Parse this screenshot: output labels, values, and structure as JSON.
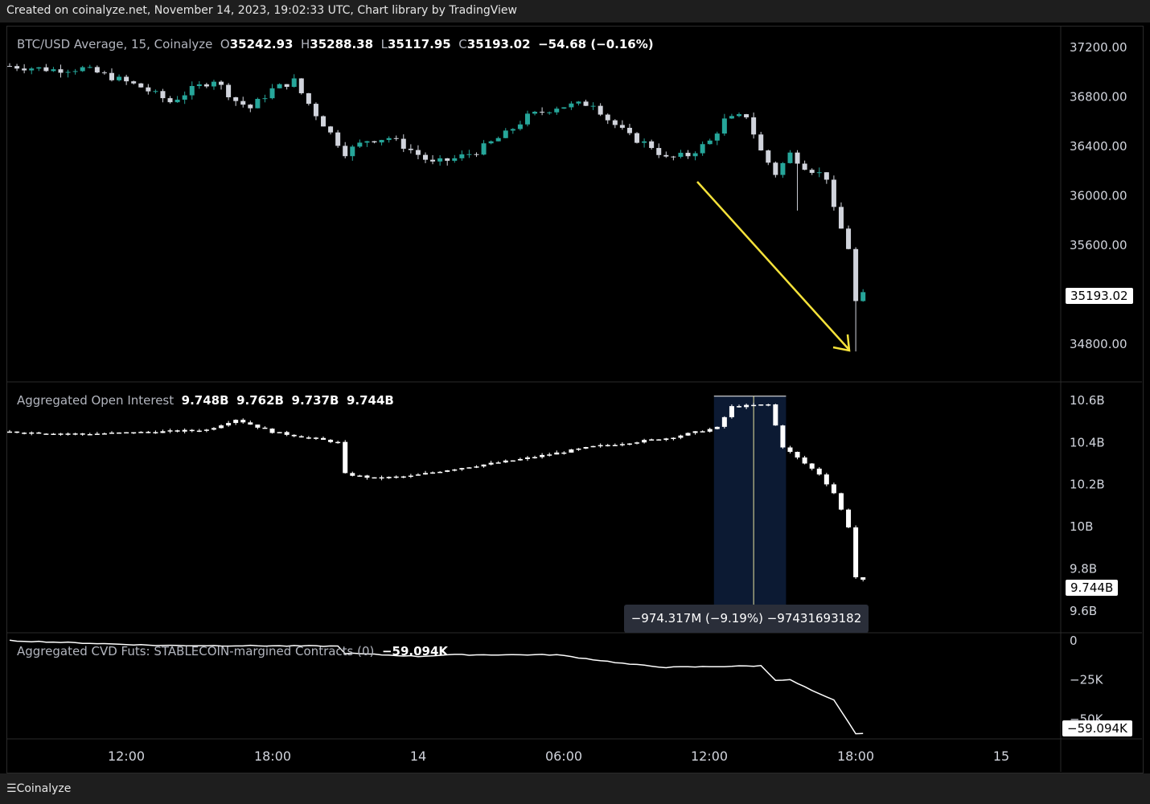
{
  "header": {
    "text": "Created on coinalyze.net, November 14, 2023, 19:02:33 UTC, Chart library by TradingView"
  },
  "footer": {
    "logo": "Coinalyze"
  },
  "price_legend": {
    "title": "BTC/USD Average, 15, Coinalyze",
    "o_label": "O",
    "o": "35242.93",
    "h_label": "H",
    "h": "35288.38",
    "l_label": "L",
    "l": "35117.95",
    "c_label": "C",
    "c": "35193.02",
    "change": "−54.68 (−0.16%)"
  },
  "oi_legend": {
    "title": "Aggregated Open Interest",
    "o": "9.748B",
    "h": "9.762B",
    "l": "9.737B",
    "c": "9.744B"
  },
  "cvd_legend": {
    "title": "Aggregated CVD Futs: STABLECOIN-margined Contracts (0)",
    "value": "−59.094K"
  },
  "measure_tooltip": "−974.317M (−9.19%) −97431693182",
  "price_last": "35193.02",
  "oi_last": "9.744B",
  "cvd_last": "−59.094K",
  "colors": {
    "up": "#26a69a",
    "down": "#d1d4dc",
    "arrow": "#f5e23a",
    "measure_bg": "#0c1a33",
    "grid": "#2a2a2a"
  },
  "chart_data": [
    {
      "type": "candlestick",
      "name": "BTC/USD Average, 15, Coinalyze",
      "y_ticks": [
        "37200.00",
        "36800.00",
        "36400.00",
        "36000.00",
        "35600.00",
        "34800.00"
      ],
      "ylim": [
        34500,
        37350
      ],
      "x_ticks": [
        "12:00",
        "18:00",
        "14",
        "06:00",
        "12:00",
        "18:00",
        "15"
      ],
      "close_path": [
        [
          0,
          37050
        ],
        [
          6,
          37020
        ],
        [
          10,
          37030
        ],
        [
          14,
          36960
        ],
        [
          18,
          36880
        ],
        [
          22,
          36760
        ],
        [
          25,
          36860
        ],
        [
          28,
          36940
        ],
        [
          31,
          36770
        ],
        [
          33,
          36710
        ],
        [
          36,
          36860
        ],
        [
          39,
          36930
        ],
        [
          40,
          36830
        ],
        [
          42,
          36660
        ],
        [
          46,
          36350
        ],
        [
          49,
          36450
        ],
        [
          52,
          36470
        ],
        [
          55,
          36370
        ],
        [
          58,
          36260
        ],
        [
          61,
          36300
        ],
        [
          64,
          36360
        ],
        [
          68,
          36500
        ],
        [
          71,
          36640
        ],
        [
          75,
          36720
        ],
        [
          80,
          36750
        ],
        [
          82,
          36620
        ],
        [
          85,
          36480
        ],
        [
          88,
          36400
        ],
        [
          90,
          36300
        ],
        [
          93,
          36330
        ],
        [
          96,
          36440
        ],
        [
          98,
          36610
        ],
        [
          101,
          36650
        ],
        [
          103,
          36360
        ],
        [
          105,
          36180
        ],
        [
          107,
          36340
        ],
        [
          109,
          36240
        ],
        [
          112,
          36150
        ],
        [
          113,
          35880
        ],
        [
          115,
          35580
        ],
        [
          116,
          35140
        ],
        [
          117,
          35193
        ]
      ],
      "last_price": 35193.02
    },
    {
      "type": "candlestick",
      "name": "Aggregated Open Interest",
      "y_ticks": [
        "10.6B",
        "10.4B",
        "10.2B",
        "10B",
        "9.8B",
        "9.6B"
      ],
      "ylim": [
        9.5,
        10.68
      ],
      "close_path": [
        [
          0,
          10.45
        ],
        [
          10,
          10.44
        ],
        [
          20,
          10.45
        ],
        [
          27,
          10.46
        ],
        [
          31,
          10.51
        ],
        [
          36,
          10.45
        ],
        [
          45,
          10.4
        ],
        [
          46,
          10.25
        ],
        [
          50,
          10.23
        ],
        [
          55,
          10.24
        ],
        [
          60,
          10.27
        ],
        [
          70,
          10.32
        ],
        [
          80,
          10.38
        ],
        [
          90,
          10.42
        ],
        [
          97,
          10.47
        ],
        [
          99,
          10.57
        ],
        [
          104,
          10.58
        ],
        [
          106,
          10.38
        ],
        [
          109,
          10.3
        ],
        [
          111,
          10.25
        ],
        [
          113,
          10.16
        ],
        [
          115,
          10.0
        ],
        [
          116,
          9.76
        ],
        [
          117,
          9.744
        ]
      ],
      "measure": {
        "from_bar": 97,
        "to_bar": 106,
        "from_value": 10.62,
        "to_value": 9.6,
        "label": "−974.317M (−9.19%) −97431693182"
      },
      "last_value": 9.744
    },
    {
      "type": "line",
      "name": "Aggregated CVD Futs: STABLECOIN-margined Contracts (0)",
      "y_ticks": [
        "0",
        "−25K",
        "−50K"
      ],
      "ylim": [
        -62000,
        4000
      ],
      "values": [
        [
          0,
          0
        ],
        [
          20,
          -3000
        ],
        [
          45,
          -3500
        ],
        [
          46,
          -8000
        ],
        [
          56,
          -10000
        ],
        [
          60,
          -9000
        ],
        [
          75,
          -9000
        ],
        [
          85,
          -15000
        ],
        [
          90,
          -17000
        ],
        [
          103,
          -16000
        ],
        [
          105,
          -25000
        ],
        [
          107,
          -25000
        ],
        [
          111,
          -34000
        ],
        [
          113,
          -38000
        ],
        [
          116,
          -59094
        ]
      ],
      "last_value": -59094
    }
  ]
}
